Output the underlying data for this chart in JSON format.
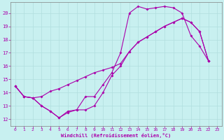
{
  "bg_color": "#c8f0f0",
  "grid_color": "#b0dede",
  "line_color": "#aa00aa",
  "xlim": [
    -0.5,
    23.5
  ],
  "ylim": [
    11.5,
    20.8
  ],
  "xticks": [
    0,
    1,
    2,
    3,
    4,
    5,
    6,
    7,
    8,
    9,
    10,
    11,
    12,
    13,
    14,
    15,
    16,
    17,
    18,
    19,
    20,
    21,
    22,
    23
  ],
  "yticks": [
    12,
    13,
    14,
    15,
    16,
    17,
    18,
    19,
    20
  ],
  "xlabel": "Windchill (Refroidissement éolien,°C)",
  "line1_x": [
    0,
    1,
    2,
    3,
    4,
    5,
    6,
    7,
    8,
    9,
    10,
    11,
    12,
    13,
    14,
    15,
    16,
    17,
    18,
    19,
    20,
    21,
    22
  ],
  "line1_y": [
    14.5,
    13.7,
    13.6,
    13.0,
    12.6,
    12.1,
    12.6,
    12.7,
    13.7,
    13.7,
    14.6,
    15.5,
    17.0,
    20.0,
    20.5,
    20.3,
    20.4,
    20.5,
    20.4,
    20.0,
    18.3,
    17.5,
    16.4
  ],
  "line2_x": [
    0,
    1,
    2,
    3,
    4,
    5,
    6,
    7,
    8,
    9,
    10,
    11,
    12,
    13,
    14,
    15,
    16,
    17,
    18,
    19,
    20,
    21,
    22
  ],
  "line2_y": [
    14.5,
    13.7,
    13.6,
    13.7,
    14.1,
    14.3,
    14.6,
    14.9,
    15.2,
    15.5,
    15.7,
    15.9,
    16.2,
    17.1,
    17.8,
    18.2,
    18.6,
    19.0,
    19.3,
    19.6,
    19.3,
    18.6,
    16.4
  ],
  "line3_x": [
    0,
    1,
    2,
    3,
    4,
    5,
    6,
    7,
    8,
    9,
    10,
    11,
    12,
    13,
    14,
    15,
    16,
    17,
    18,
    19,
    20,
    21,
    22
  ],
  "line3_y": [
    14.5,
    13.7,
    13.6,
    13.0,
    12.6,
    12.1,
    12.5,
    12.7,
    12.7,
    13.0,
    14.0,
    15.3,
    16.0,
    17.1,
    17.8,
    18.2,
    18.6,
    19.0,
    19.3,
    19.6,
    19.3,
    18.6,
    16.4
  ]
}
